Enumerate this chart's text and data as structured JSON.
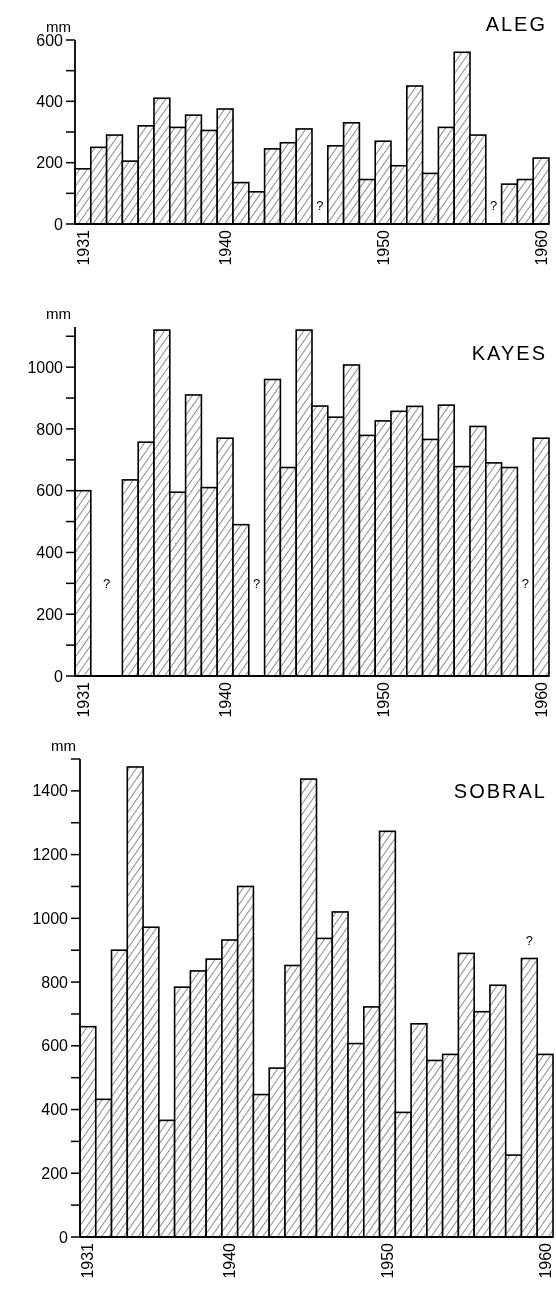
{
  "chart_data": [
    {
      "type": "bar",
      "title": "ALEG",
      "ylabel": "mm",
      "x": [
        1931,
        1932,
        1933,
        1934,
        1935,
        1936,
        1937,
        1938,
        1939,
        1940,
        1941,
        1942,
        1943,
        1944,
        1945,
        1946,
        1947,
        1948,
        1949,
        1950,
        1951,
        1952,
        1953,
        1954,
        1955,
        1956,
        1957,
        1958,
        1959,
        1960
      ],
      "values": [
        180,
        250,
        290,
        205,
        320,
        410,
        315,
        355,
        305,
        375,
        135,
        105,
        245,
        265,
        310,
        null,
        255,
        330,
        145,
        270,
        190,
        450,
        165,
        315,
        560,
        290,
        null,
        130,
        145,
        215
      ],
      "color": "#000000",
      "xlim": [
        1930.5,
        1960.5
      ],
      "xticks": [
        1931,
        1940,
        1950,
        1960
      ],
      "ylim": [
        0,
        600
      ],
      "yticks": [
        0,
        {
          "value": 100,
          "label": null
        },
        200,
        {
          "value": 300,
          "label": null
        },
        400,
        {
          "value": 500,
          "label": null
        },
        600
      ],
      "annotations": [
        "?",
        "?"
      ]
    },
    {
      "type": "bar",
      "title": "KAYES",
      "ylabel": "mm",
      "x": [
        1931,
        1932,
        1933,
        1934,
        1935,
        1936,
        1937,
        1938,
        1939,
        1940,
        1941,
        1942,
        1943,
        1944,
        1945,
        1946,
        1947,
        1948,
        1949,
        1950,
        1951,
        1952,
        1953,
        1954,
        1955,
        1956,
        1957,
        1958,
        1959,
        1960
      ],
      "values": [
        600,
        null,
        null,
        635,
        757,
        1120,
        595,
        910,
        610,
        770,
        490,
        null,
        960,
        675,
        1120,
        874,
        838,
        1007,
        779,
        826,
        857,
        873,
        766,
        877,
        678,
        808,
        690,
        675,
        null,
        770
      ],
      "color": "#000000",
      "xlim": [
        1930.5,
        1960.5
      ],
      "xticks": [
        1931,
        1940,
        1950,
        1960
      ],
      "ylim": [
        0,
        1130
      ],
      "yticks": [
        0,
        {
          "value": 100,
          "label": null
        },
        200,
        {
          "value": 300,
          "label": null
        },
        400,
        {
          "value": 500,
          "label": null
        },
        600,
        {
          "value": 700,
          "label": null
        },
        800,
        {
          "value": 900,
          "label": null
        },
        1000,
        {
          "value": 1100,
          "label": null
        }
      ],
      "annotations": [
        "?",
        "?",
        "?"
      ]
    },
    {
      "type": "bar",
      "title": "SOBRAL",
      "ylabel": "mm",
      "x": [
        1931,
        1932,
        1933,
        1934,
        1935,
        1936,
        1937,
        1938,
        1939,
        1940,
        1941,
        1942,
        1943,
        1944,
        1945,
        1946,
        1947,
        1948,
        1949,
        1950,
        1951,
        1952,
        1953,
        1954,
        1955,
        1956,
        1957,
        1958,
        1959,
        1960
      ],
      "values": [
        660,
        432,
        900,
        1475,
        972,
        366,
        784,
        835,
        872,
        932,
        1100,
        447,
        530,
        852,
        1437,
        937,
        1020,
        607,
        722,
        1273,
        391,
        669,
        554,
        573,
        890,
        707,
        790,
        257,
        874,
        573
      ],
      "color": "#000000",
      "xlim": [
        1930.5,
        1960.5
      ],
      "xticks": [
        1931,
        1940,
        1950,
        1960
      ],
      "ylim": [
        0,
        1500
      ],
      "yticks": [
        0,
        {
          "value": 100,
          "label": null
        },
        200,
        {
          "value": 300,
          "label": null
        },
        400,
        {
          "value": 500,
          "label": null
        },
        600,
        {
          "value": 700,
          "label": null
        },
        800,
        {
          "value": 900,
          "label": null
        },
        1000,
        {
          "value": 1100,
          "label": null
        },
        1200,
        {
          "value": 1300,
          "label": null
        },
        1400,
        {
          "value": 1500,
          "label": null
        }
      ],
      "annotations": [
        "?"
      ]
    }
  ]
}
